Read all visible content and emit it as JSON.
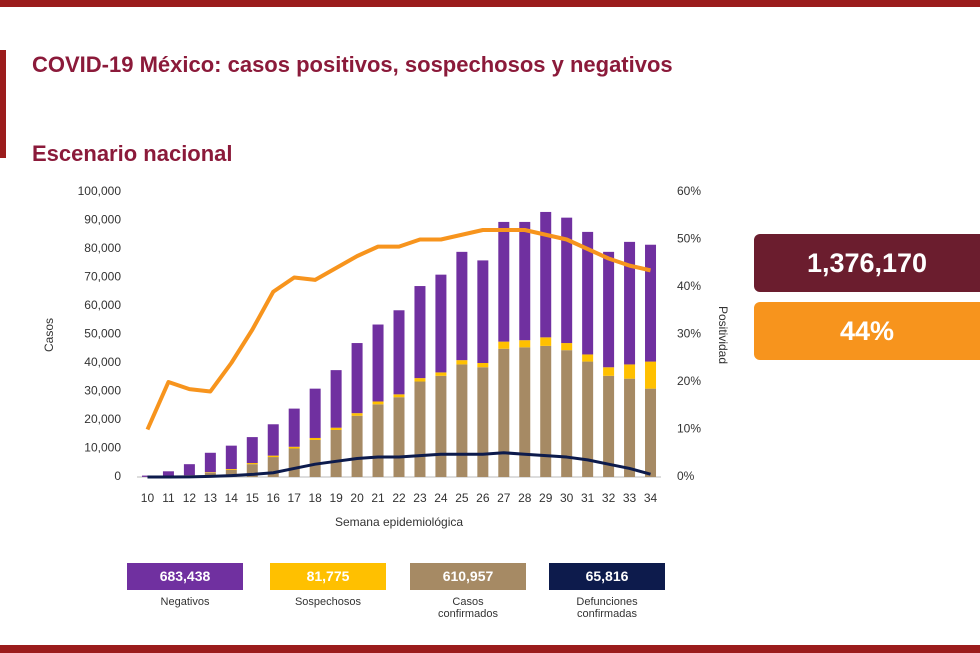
{
  "header": {
    "title": "COVID-19 México: casos positivos, sospechosos y negativos",
    "subtitle": "Escenario nacional"
  },
  "chart_data": {
    "type": "bar",
    "stacked": true,
    "categories": [
      "10",
      "11",
      "12",
      "13",
      "14",
      "15",
      "16",
      "17",
      "18",
      "19",
      "20",
      "21",
      "22",
      "23",
      "24",
      "25",
      "26",
      "27",
      "28",
      "29",
      "30",
      "31",
      "32",
      "33",
      "34"
    ],
    "x_label": "Semana epidemiológica",
    "y_label": "Casos",
    "y2_label": "Positividad",
    "ylim": [
      0,
      100000
    ],
    "yticks": [
      0,
      {
        "value": 10000,
        "label": "10,000"
      },
      {
        "value": 20000,
        "label": "20,000"
      },
      {
        "value": 30000,
        "label": "30,000"
      },
      {
        "value": 40000,
        "label": "40,000"
      },
      {
        "value": 50000,
        "label": "50,000"
      },
      {
        "value": 60000,
        "label": "60,000"
      },
      {
        "value": 70000,
        "label": "70,000"
      },
      {
        "value": 80000,
        "label": "80,000"
      },
      {
        "value": 90000,
        "label": "90,000"
      },
      {
        "value": 100000,
        "label": "100,000"
      }
    ],
    "y2lim": [
      0,
      60
    ],
    "y2ticks": [
      {
        "value": 0,
        "label": "0%"
      },
      {
        "value": 10,
        "label": "10%"
      },
      {
        "value": 20,
        "label": "20%"
      },
      {
        "value": 30,
        "label": "30%"
      },
      {
        "value": 40,
        "label": "40%"
      },
      {
        "value": 50,
        "label": "50%"
      },
      {
        "value": 60,
        "label": "60%"
      }
    ],
    "series": [
      {
        "name": "Negativos",
        "color": "#7030a0",
        "total": {
          "value": 683438,
          "label": "683,438"
        },
        "values": [
          450,
          1750,
          3900,
          6800,
          8200,
          9100,
          11000,
          13400,
          17300,
          20200,
          24600,
          27000,
          29500,
          32300,
          34300,
          38000,
          36000,
          42000,
          41500,
          44000,
          44000,
          43000,
          40500,
          43000,
          41000
        ]
      },
      {
        "name": "Sospechosos",
        "color": "#ffc000",
        "total": {
          "value": 81775,
          "label": "81,775"
        },
        "values": [
          0,
          50,
          100,
          200,
          300,
          400,
          500,
          600,
          700,
          800,
          900,
          1000,
          1000,
          1200,
          1200,
          1500,
          1500,
          2500,
          2500,
          3000,
          2500,
          2500,
          3000,
          5000,
          9500
        ]
      },
      {
        "name": "Casos confirmados",
        "color": "#a68a64",
        "total": {
          "value": 610957,
          "label": "610,957"
        },
        "values": [
          50,
          200,
          500,
          1500,
          2500,
          4500,
          7000,
          10000,
          13000,
          16500,
          21500,
          25500,
          28000,
          33500,
          35500,
          39500,
          38500,
          45000,
          45500,
          46000,
          44500,
          40500,
          35500,
          34500,
          31000
        ]
      },
      {
        "name": "Defunciones confirmadas",
        "color": "#0d1b4c",
        "type": "line",
        "total": {
          "value": 65816,
          "label": "65,816"
        },
        "values": [
          0,
          10,
          50,
          200,
          500,
          900,
          1500,
          3000,
          4500,
          5500,
          6500,
          7000,
          7000,
          7500,
          8000,
          8000,
          8000,
          8500,
          8000,
          7500,
          7000,
          6000,
          4500,
          3000,
          1000
        ]
      },
      {
        "color": "#f7941d",
        "type": "line",
        "axis": "y2",
        "values": [
          10,
          20,
          18.5,
          18,
          24,
          31,
          39,
          42,
          41.5,
          44,
          46.5,
          48.5,
          48.5,
          50,
          50,
          51,
          52,
          52,
          52,
          51,
          50,
          48,
          46,
          44.5,
          43.5
        ]
      }
    ]
  },
  "highlights": [
    {
      "value": 1376170,
      "label": "1,376,170",
      "color": "#6b1d2e"
    },
    {
      "value": 44,
      "label": "44%",
      "color": "#f7941d"
    }
  ]
}
